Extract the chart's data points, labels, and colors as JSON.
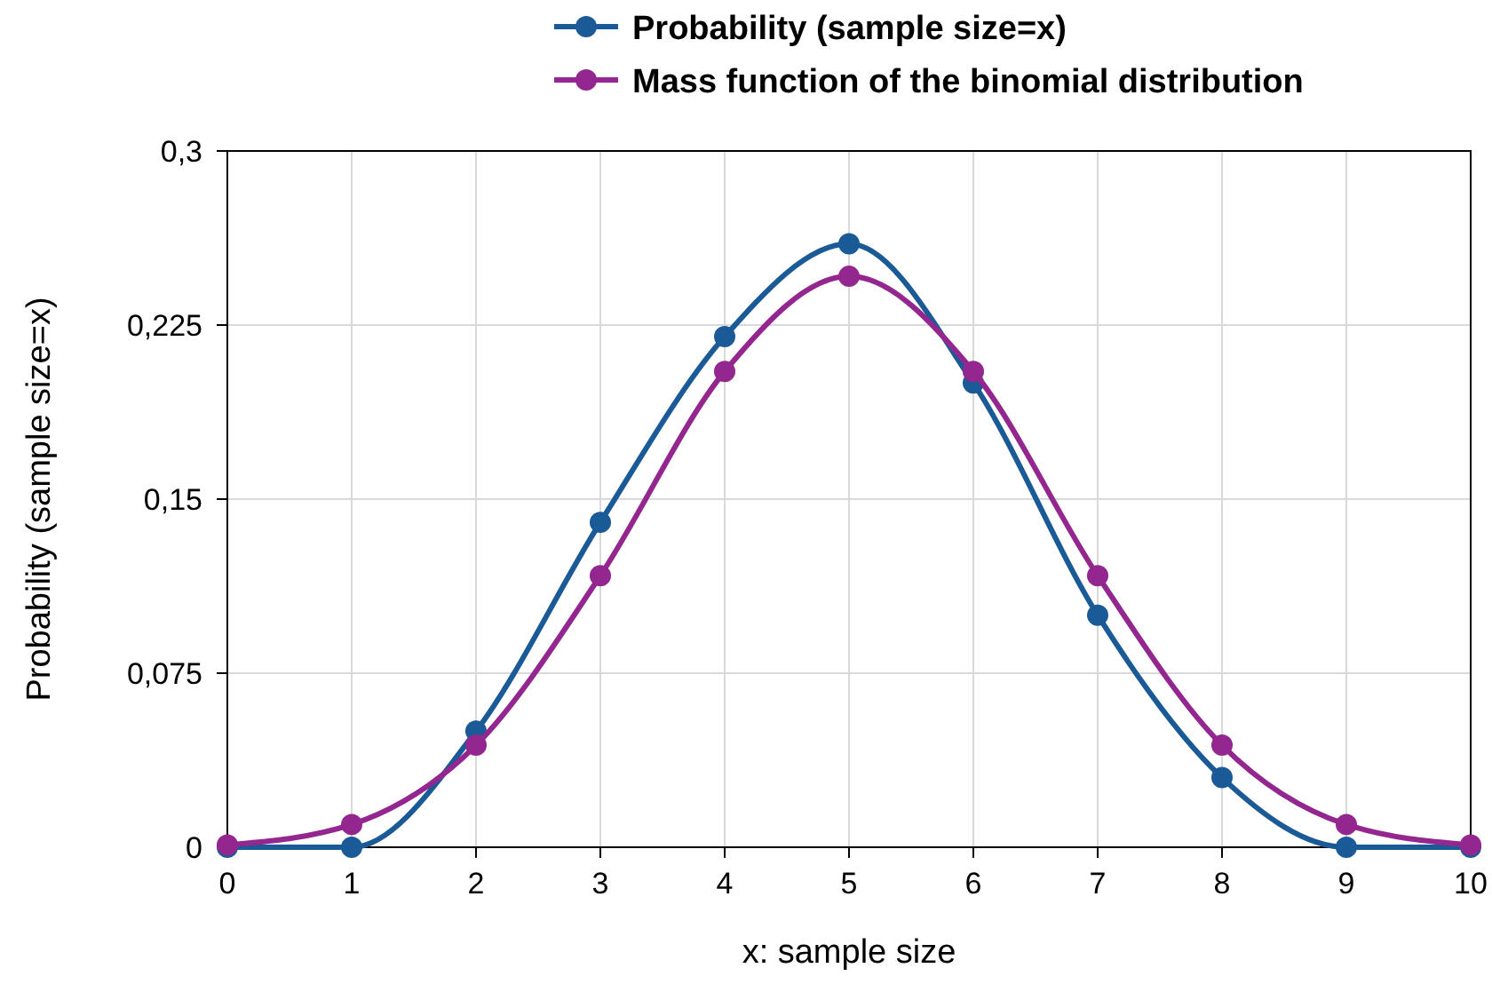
{
  "chart_data": {
    "type": "line",
    "xlabel": "x: sample size",
    "ylabel": "Probability (sample size=x)",
    "x": [
      0,
      1,
      2,
      3,
      4,
      5,
      6,
      7,
      8,
      9,
      10
    ],
    "series": [
      {
        "name": "Probability (sample size=x)",
        "color": "#1a5a96",
        "values": [
          0,
          0,
          0.05,
          0.14,
          0.22,
          0.26,
          0.2,
          0.1,
          0.03,
          0,
          0
        ]
      },
      {
        "name": "Mass function of the binomial distribution",
        "color": "#93278f",
        "values": [
          0.001,
          0.0098,
          0.044,
          0.117,
          0.205,
          0.246,
          0.205,
          0.117,
          0.044,
          0.0098,
          0.001
        ]
      }
    ],
    "xlim": [
      0,
      10
    ],
    "xticks": [
      0,
      1,
      2,
      3,
      4,
      5,
      6,
      7,
      8,
      9,
      10
    ],
    "ylim": [
      0,
      0.3
    ],
    "yticks": [
      0,
      {
        "value": 0.075,
        "label": "0,075"
      },
      {
        "value": 0.15,
        "label": "0,15"
      },
      {
        "value": 0.225,
        "label": "0,225"
      },
      {
        "value": 0.3,
        "label": "0,3"
      }
    ],
    "grid": true,
    "legend": "top",
    "marker": "circle",
    "line_style": "solid"
  }
}
